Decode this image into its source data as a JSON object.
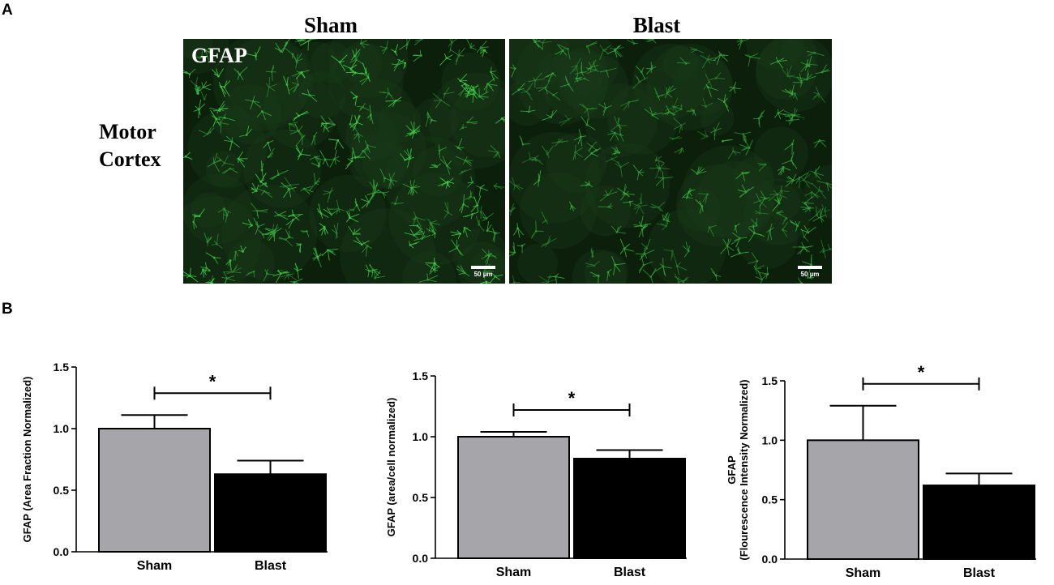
{
  "panel_a": {
    "letter": "A",
    "columns": [
      "Sham",
      "Blast"
    ],
    "row_label": [
      "Motor",
      "Cortex"
    ],
    "stain_label": "GFAP",
    "scale_bar_label": "50 µm",
    "stain_color": "#3fd048"
  },
  "panel_b": {
    "letter": "B"
  },
  "colors": {
    "sham": "#a5a5aa",
    "blast": "#000000"
  },
  "chart_data": [
    {
      "type": "bar",
      "categories": [
        "Sham",
        "Blast"
      ],
      "values": [
        1.0,
        0.63
      ],
      "errors": [
        0.11,
        0.11
      ],
      "ylabel": [
        "GFAP (Area Fraction Normalized)"
      ],
      "ylim": [
        0,
        1.5
      ],
      "yticks": [
        "0.0",
        "0.5",
        "1.0",
        "1.5"
      ],
      "significance": "*"
    },
    {
      "type": "bar",
      "categories": [
        "Sham",
        "Blast"
      ],
      "values": [
        1.0,
        0.82
      ],
      "errors": [
        0.04,
        0.07
      ],
      "ylabel": [
        "GFAP (area/cell normalized)"
      ],
      "ylim": [
        0,
        1.5
      ],
      "yticks": [
        "0.0",
        "0.5",
        "1.0",
        "1.5"
      ],
      "significance": "*"
    },
    {
      "type": "bar",
      "categories": [
        "Sham",
        "Blast"
      ],
      "values": [
        1.0,
        0.62
      ],
      "errors": [
        0.29,
        0.1
      ],
      "ylabel": [
        "GFAP",
        "(Flourescence Intensity Normalized)"
      ],
      "ylim": [
        0,
        1.5
      ],
      "yticks": [
        "0.0",
        "0.5",
        "1.0",
        "1.5"
      ],
      "significance": "*"
    }
  ]
}
